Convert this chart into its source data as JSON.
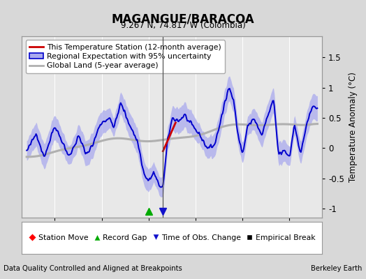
{
  "title": "MAGANGUE/BARACOA",
  "subtitle": "9.267 N, 74.817 W (Colombia)",
  "ylabel": "Temperature Anomaly (°C)",
  "footer_left": "Data Quality Controlled and Aligned at Breakpoints",
  "footer_right": "Berkeley Earth",
  "xlim": [
    1961.5,
    1993.5
  ],
  "ylim": [
    -1.15,
    1.85
  ],
  "yticks": [
    -1.0,
    -0.5,
    0.0,
    0.5,
    1.0,
    1.5
  ],
  "xticks": [
    1965,
    1970,
    1975,
    1980,
    1985,
    1990
  ],
  "bg_color": "#d8d8d8",
  "plot_bg_color": "#e8e8e8",
  "blue_line_color": "#0000cc",
  "blue_fill_color": "#aaaaee",
  "red_line_color": "#cc0000",
  "gray_line_color": "#b0b0b0",
  "vline_x": 1976.5,
  "vline_color": "#555555",
  "record_gap_x": 1975.0,
  "obs_change_x": 1976.5,
  "legend_box_items": [
    "This Temperature Station (12-month average)",
    "Regional Expectation with 95% uncertainty",
    "Global Land (5-year average)"
  ],
  "bottom_legend_items": [
    "Station Move",
    "Record Gap",
    "Time of Obs. Change",
    "Empirical Break"
  ]
}
